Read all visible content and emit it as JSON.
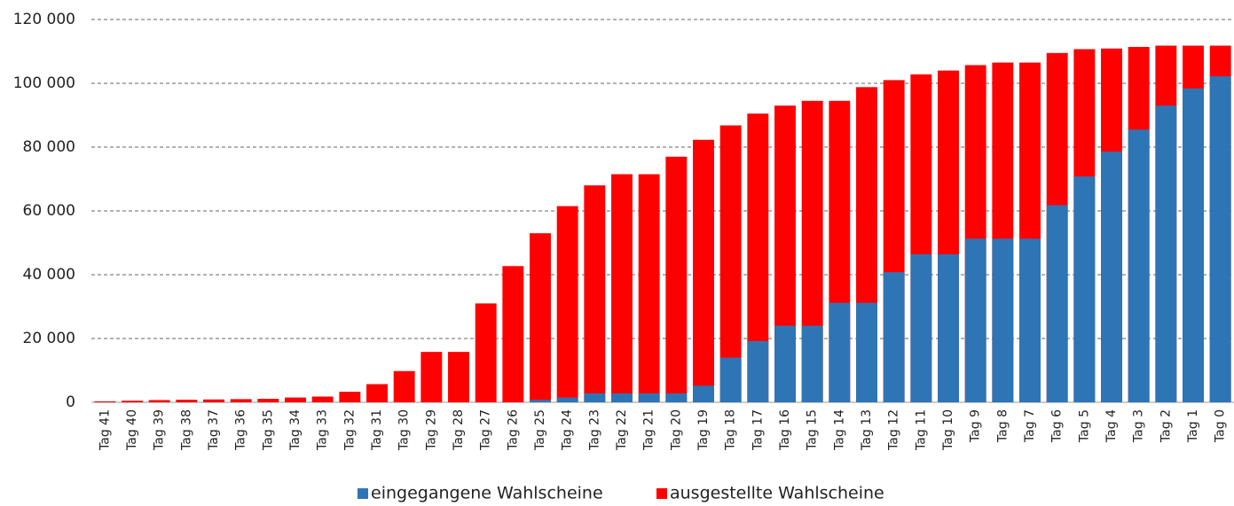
{
  "chart_data": {
    "type": "bar",
    "overlap": true,
    "categories": [
      "Tag 41",
      "Tag 40",
      "Tag 39",
      "Tag 38",
      "Tag 37",
      "Tag 36",
      "Tag 35",
      "Tag 34",
      "Tag 33",
      "Tag 32",
      "Tag 31",
      "Tag 30",
      "Tag 29",
      "Tag 28",
      "Tag 27",
      "Tag 26",
      "Tag 25",
      "Tag 24",
      "Tag 23",
      "Tag 22",
      "Tag 21",
      "Tag 20",
      "Tag 19",
      "Tag 18",
      "Tag 17",
      "Tag 16",
      "Tag 15",
      "Tag 14",
      "Tag 13",
      "Tag 12",
      "Tag 11",
      "Tag 10",
      "Tag 9",
      "Tag 8",
      "Tag 7",
      "Tag 6",
      "Tag 5",
      "Tag 4",
      "Tag 3",
      "Tag 2",
      "Tag 1",
      "Tag 0"
    ],
    "series": [
      {
        "name": "eingegangene Wahlscheine",
        "color": "#2e75b6",
        "values": [
          0,
          0,
          0,
          0,
          0,
          0,
          0,
          0,
          0,
          0,
          0,
          0,
          0,
          0,
          0,
          0,
          800,
          1500,
          2800,
          2800,
          2800,
          2800,
          5200,
          14000,
          19200,
          24000,
          24000,
          31200,
          31200,
          40800,
          46400,
          46400,
          51300,
          51300,
          51300,
          61800,
          70800,
          78600,
          85500,
          93000,
          98400,
          102200
        ]
      },
      {
        "name": "ausgestellte Wahlscheine",
        "color": "#ff0000",
        "values": [
          300,
          500,
          700,
          800,
          900,
          1000,
          1100,
          1500,
          1800,
          3300,
          5700,
          9800,
          15800,
          15800,
          31000,
          42700,
          53000,
          61500,
          68000,
          71500,
          71500,
          77000,
          82300,
          86800,
          90500,
          93000,
          94500,
          94500,
          98800,
          101000,
          102800,
          104000,
          105700,
          106500,
          106500,
          109500,
          110700,
          110900,
          111400,
          111800,
          111800,
          111800
        ]
      }
    ],
    "ylim": [
      0,
      120000
    ],
    "yticks": [
      0,
      {
        "value": 20000,
        "label": "20 000"
      },
      {
        "value": 40000,
        "label": "40 000"
      },
      {
        "value": 60000,
        "label": "60 000"
      },
      {
        "value": 80000,
        "label": "80 000"
      },
      {
        "value": 100000,
        "label": "100 000"
      },
      {
        "value": 120000,
        "label": "120 000"
      }
    ],
    "grid": true,
    "legend": "bottom"
  }
}
